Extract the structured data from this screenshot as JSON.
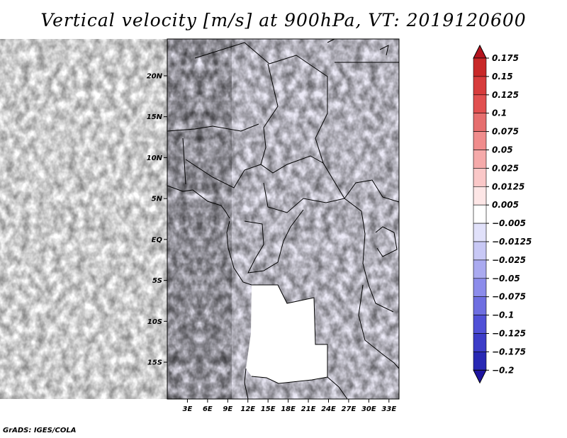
{
  "title": "Vertical velocity [m/s] at 900hPa, VT: 2019120600",
  "credit": "GrADS: IGES/COLA",
  "chart_data": {
    "type": "heatmap",
    "title": "Vertical velocity [m/s] at 900hPa, VT: 2019120600",
    "xlabel": "",
    "ylabel": "",
    "variable": "Vertical velocity",
    "units": "m/s",
    "level": "900hPa",
    "valid_time": "2019120600",
    "xlim": [
      0,
      34.5
    ],
    "ylim": [
      -19.5,
      24.5
    ],
    "x_ticks": [
      3,
      6,
      9,
      12,
      15,
      18,
      21,
      24,
      27,
      30,
      33
    ],
    "x_tick_labels": [
      "3E",
      "6E",
      "9E",
      "12E",
      "15E",
      "18E",
      "21E",
      "24E",
      "27E",
      "30E",
      "33E"
    ],
    "y_ticks": [
      20,
      15,
      10,
      5,
      0,
      -5,
      -10,
      -15
    ],
    "y_tick_labels": [
      "20N",
      "15N",
      "10N",
      "5N",
      "EQ",
      "5S",
      "10S",
      "15S"
    ],
    "grid": false,
    "colorbar": {
      "orientation": "vertical",
      "placement": "right",
      "levels": [
        0.175,
        0.15,
        0.125,
        0.1,
        0.075,
        0.05,
        0.025,
        0.0125,
        0.005,
        -0.005,
        -0.0125,
        -0.025,
        -0.05,
        -0.075,
        -0.1,
        -0.125,
        -0.175,
        -0.2
      ],
      "labels": [
        "0.175",
        "0.15",
        "0.125",
        "0.1",
        "0.075",
        "0.05",
        "0.025",
        "0.0125",
        "0.005",
        "−0.005",
        "−0.0125",
        "−0.025",
        "−0.05",
        "−0.075",
        "−0.1",
        "−0.125",
        "−0.175",
        "−0.2"
      ],
      "colors": [
        "#b4141e",
        "#c82828",
        "#d73c3c",
        "#e15050",
        "#e66e6e",
        "#f08c8c",
        "#f5aaaa",
        "#fac8c8",
        "#fde6e6",
        "#ffffff",
        "#e1e1fa",
        "#c8c8f5",
        "#aaaaf0",
        "#8c8ceb",
        "#6e6ee1",
        "#5050d7",
        "#3c3cc8",
        "#2828b4",
        "#1e14a0"
      ]
    }
  }
}
